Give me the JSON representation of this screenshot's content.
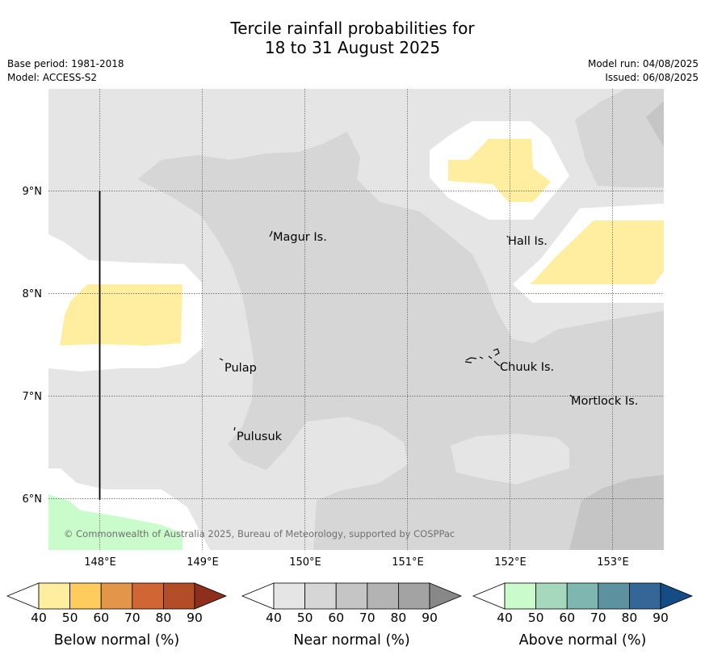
{
  "header": {
    "title_line1": "Tercile rainfall probabilities for",
    "title_line2": "18 to 31 August 2025",
    "base_period": "Base period: 1981-2018",
    "model": "Model: ACCESS-S2",
    "model_run": "Model run: 04/08/2025",
    "issued": "Issued: 06/08/2025"
  },
  "map": {
    "lat_labels": [
      "9°N",
      "8°N",
      "7°N",
      "6°N"
    ],
    "lon_labels": [
      "148°E",
      "149°E",
      "150°E",
      "151°E",
      "152°E",
      "153°E"
    ],
    "places": [
      "Magur Is.",
      "Hall Is.",
      "Pulap",
      "Chuuk Is.",
      "Mortlock Is.",
      "Pulusuk"
    ],
    "copyright": "© Commonwealth of Australia 2025, Bureau of Meteorology, supported by COSPPac"
  },
  "legends": [
    {
      "label": "Below normal (%)",
      "ticks": [
        "40",
        "50",
        "60",
        "70",
        "80",
        "90"
      ],
      "colors": [
        "#ffeda0",
        "#fecc5c",
        "#e3964a",
        "#cf6633",
        "#b34d28",
        "#8c2f1c"
      ]
    },
    {
      "label": "Near normal (%)",
      "ticks": [
        "40",
        "50",
        "60",
        "70",
        "80",
        "90"
      ],
      "colors": [
        "#e5e5e5",
        "#d6d6d6",
        "#c5c5c5",
        "#b3b3b3",
        "#a3a3a3",
        "#888888"
      ]
    },
    {
      "label": "Above normal (%)",
      "ticks": [
        "40",
        "50",
        "60",
        "70",
        "80",
        "90"
      ],
      "colors": [
        "#c9fbcb",
        "#a5d8bc",
        "#7fb6b0",
        "#5c929f",
        "#346698",
        "#144c86"
      ]
    }
  ]
}
